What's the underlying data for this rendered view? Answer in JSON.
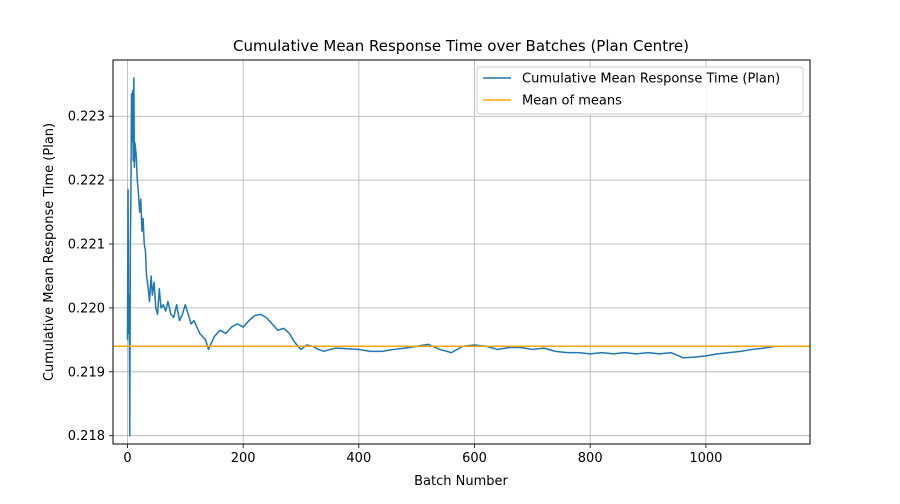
{
  "chart_data": {
    "type": "line",
    "title": "Cumulative Mean Response Time over Batches (Plan Centre)",
    "xlabel": "Batch Number",
    "ylabel": "Cumulative Mean Response Time (Plan)",
    "xlim": [
      -25,
      1180
    ],
    "ylim": [
      0.21787,
      0.22388
    ],
    "x_ticks": [
      0,
      200,
      400,
      600,
      800,
      1000
    ],
    "x_tick_labels": [
      "0",
      "200",
      "400",
      "600",
      "800",
      "1000"
    ],
    "y_ticks": [
      0.218,
      0.219,
      0.22,
      0.221,
      0.222,
      0.223
    ],
    "y_tick_labels": [
      "0.218",
      "0.219",
      "0.220",
      "0.221",
      "0.222",
      "0.223"
    ],
    "grid": true,
    "legend_position": "top-right",
    "series": [
      {
        "name": "Cumulative Mean Response Time (Plan)",
        "color": "#1f77b4",
        "kind": "line",
        "points": [
          [
            0,
            0.2195
          ],
          [
            1,
            0.22185
          ],
          [
            2,
            0.2196
          ],
          [
            3,
            0.2202
          ],
          [
            4,
            0.218
          ],
          [
            5,
            0.221
          ],
          [
            6,
            0.2218
          ],
          [
            7,
            0.22335
          ],
          [
            8,
            0.2226
          ],
          [
            9,
            0.2234
          ],
          [
            10,
            0.2223
          ],
          [
            11,
            0.2236
          ],
          [
            12,
            0.2222
          ],
          [
            13,
            0.22258
          ],
          [
            15,
            0.2224
          ],
          [
            17,
            0.222
          ],
          [
            19,
            0.2218
          ],
          [
            21,
            0.2215
          ],
          [
            23,
            0.2217
          ],
          [
            25,
            0.2212
          ],
          [
            27,
            0.2214
          ],
          [
            29,
            0.221
          ],
          [
            31,
            0.2209
          ],
          [
            33,
            0.2205
          ],
          [
            36,
            0.2203
          ],
          [
            38,
            0.2201
          ],
          [
            41,
            0.2205
          ],
          [
            43,
            0.2202
          ],
          [
            46,
            0.2204
          ],
          [
            49,
            0.22
          ],
          [
            52,
            0.2199
          ],
          [
            55,
            0.2203
          ],
          [
            58,
            0.22
          ],
          [
            62,
            0.22005
          ],
          [
            66,
            0.21995
          ],
          [
            70,
            0.2201
          ],
          [
            75,
            0.2199
          ],
          [
            80,
            0.21985
          ],
          [
            85,
            0.22005
          ],
          [
            90,
            0.2198
          ],
          [
            95,
            0.2199
          ],
          [
            100,
            0.22005
          ],
          [
            105,
            0.2199
          ],
          [
            110,
            0.21975
          ],
          [
            115,
            0.2198
          ],
          [
            120,
            0.2197
          ],
          [
            125,
            0.2196
          ],
          [
            130,
            0.21955
          ],
          [
            135,
            0.2195
          ],
          [
            140,
            0.21935
          ],
          [
            145,
            0.21945
          ],
          [
            150,
            0.21955
          ],
          [
            160,
            0.21965
          ],
          [
            170,
            0.2196
          ],
          [
            180,
            0.2197
          ],
          [
            190,
            0.21975
          ],
          [
            200,
            0.2197
          ],
          [
            210,
            0.2198
          ],
          [
            220,
            0.21988
          ],
          [
            230,
            0.2199
          ],
          [
            240,
            0.21985
          ],
          [
            250,
            0.21975
          ],
          [
            260,
            0.21965
          ],
          [
            270,
            0.21968
          ],
          [
            280,
            0.2196
          ],
          [
            290,
            0.21945
          ],
          [
            300,
            0.21935
          ],
          [
            310,
            0.21942
          ],
          [
            320,
            0.2194
          ],
          [
            330,
            0.21935
          ],
          [
            340,
            0.21932
          ],
          [
            350,
            0.21935
          ],
          [
            360,
            0.21937
          ],
          [
            380,
            0.21936
          ],
          [
            400,
            0.21935
          ],
          [
            420,
            0.21932
          ],
          [
            440,
            0.21932
          ],
          [
            460,
            0.21935
          ],
          [
            480,
            0.21937
          ],
          [
            500,
            0.2194
          ],
          [
            520,
            0.21943
          ],
          [
            540,
            0.21935
          ],
          [
            560,
            0.2193
          ],
          [
            580,
            0.2194
          ],
          [
            600,
            0.21942
          ],
          [
            620,
            0.2194
          ],
          [
            640,
            0.21935
          ],
          [
            660,
            0.21938
          ],
          [
            680,
            0.21938
          ],
          [
            700,
            0.21935
          ],
          [
            720,
            0.21937
          ],
          [
            740,
            0.21932
          ],
          [
            760,
            0.2193
          ],
          [
            780,
            0.2193
          ],
          [
            800,
            0.21928
          ],
          [
            820,
            0.2193
          ],
          [
            840,
            0.21928
          ],
          [
            860,
            0.2193
          ],
          [
            880,
            0.21928
          ],
          [
            900,
            0.2193
          ],
          [
            920,
            0.21928
          ],
          [
            940,
            0.2193
          ],
          [
            960,
            0.21922
          ],
          [
            980,
            0.21923
          ],
          [
            1000,
            0.21925
          ],
          [
            1020,
            0.21928
          ],
          [
            1040,
            0.2193
          ],
          [
            1060,
            0.21932
          ],
          [
            1080,
            0.21935
          ],
          [
            1100,
            0.21937
          ],
          [
            1120,
            0.2194
          ],
          [
            1130,
            0.2194
          ]
        ]
      },
      {
        "name": "Mean of means",
        "color": "#ffa500",
        "kind": "hline",
        "value": 0.2194
      }
    ]
  }
}
